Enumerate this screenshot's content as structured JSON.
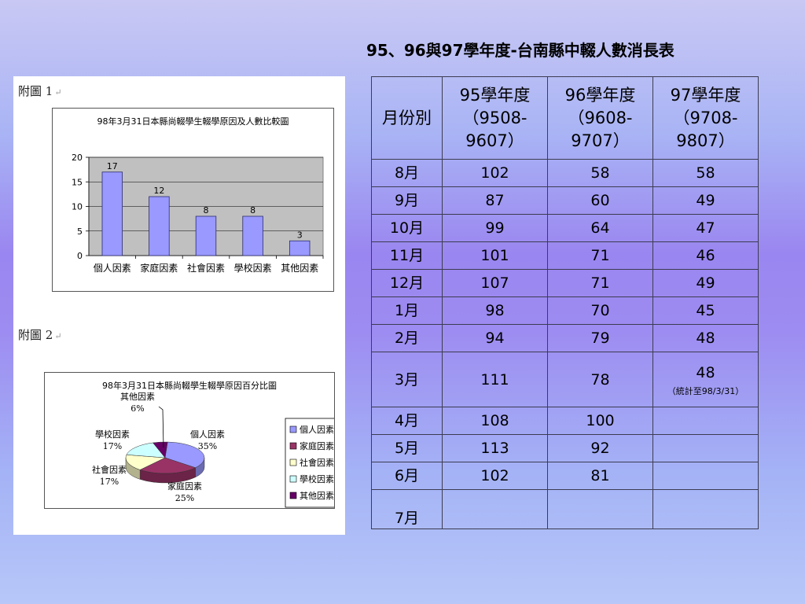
{
  "slide": {
    "title": "95、96與97學年度-台南縣中輟人數消長表"
  },
  "figures": {
    "fig1": {
      "caption": "附圖 1",
      "caption_mark": "↵"
    },
    "fig2": {
      "caption": "附圖 2",
      "caption_mark": "↵"
    }
  },
  "chart_data": [
    {
      "type": "bar",
      "title": "98年3月31日本縣尚輟學生輟學原因及人數比較圖",
      "categories": [
        "個人因素",
        "家庭因素",
        "社會因素",
        "學校因素",
        "其他因素"
      ],
      "values": [
        17,
        12,
        8,
        8,
        3
      ],
      "ylim": [
        0,
        20
      ],
      "yticks": [
        0,
        5,
        10,
        15,
        20
      ],
      "xlabel": "",
      "ylabel": "",
      "grid": true,
      "colors": {
        "bar": "#9999ff",
        "plot_bg": "#c0c0c0"
      }
    },
    {
      "type": "pie",
      "title": "98年3月31日本縣尚輟學生輟學原因百分比圖",
      "categories": [
        "個人因素",
        "家庭因素",
        "社會因素",
        "學校因素",
        "其他因素"
      ],
      "values": [
        35,
        25,
        17,
        17,
        6
      ],
      "labels": [
        "35%",
        "25%",
        "17%",
        "17%",
        "6%"
      ],
      "colors": [
        "#9999ff",
        "#993366",
        "#ffffcc",
        "#ccffff",
        "#660066"
      ],
      "legend": "right"
    }
  ],
  "table": {
    "header": {
      "month": "月份別",
      "y95": {
        "line1": "95學年度",
        "line2": "（9508-",
        "line3": "9607）"
      },
      "y96": {
        "line1": "96學年度",
        "line2": "（9608-",
        "line3": "9707）"
      },
      "y97": {
        "line1": "97學年度",
        "line2": "（9708-",
        "line3": "9807）"
      }
    },
    "rows": [
      {
        "month": "8月",
        "y95": "102",
        "y96": "58",
        "y97": "58"
      },
      {
        "month": "9月",
        "y95": "87",
        "y96": "60",
        "y97": "49"
      },
      {
        "month": "10月",
        "y95": "99",
        "y96": "64",
        "y97": "47"
      },
      {
        "month": "11月",
        "y95": "101",
        "y96": "71",
        "y97": "46"
      },
      {
        "month": "12月",
        "y95": "107",
        "y96": "71",
        "y97": "49"
      },
      {
        "month": "1月",
        "y95": "98",
        "y96": "70",
        "y97": "45"
      },
      {
        "month": "2月",
        "y95": "94",
        "y96": "79",
        "y97": "48"
      },
      {
        "month": "3月",
        "y95": "111",
        "y96": "78",
        "y97": "48",
        "note": "（統計至98/3/31）"
      },
      {
        "month": "4月",
        "y95": "108",
        "y96": "100",
        "y97": ""
      },
      {
        "month": "5月",
        "y95": "113",
        "y96": "92",
        "y97": ""
      },
      {
        "month": "6月",
        "y95": "102",
        "y96": "81",
        "y97": ""
      },
      {
        "month": "7月",
        "y95": "",
        "y96": "",
        "y97": ""
      }
    ]
  }
}
